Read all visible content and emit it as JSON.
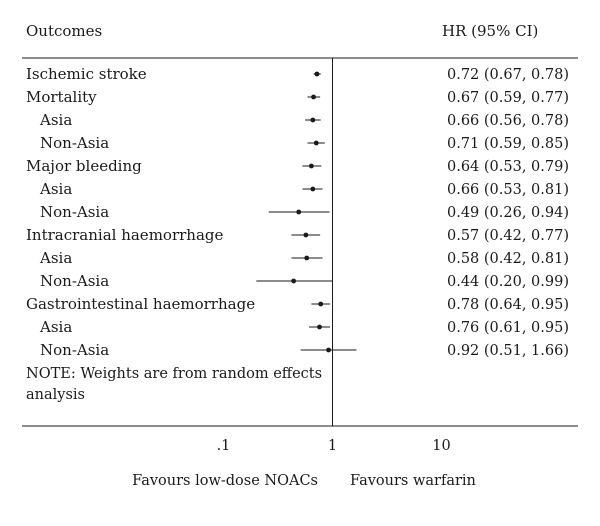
{
  "chart_data": {
    "type": "forest",
    "scale": "log",
    "x_reference": 1,
    "xlim": [
      0.05,
      50
    ],
    "header": {
      "label_column": "Outcomes",
      "value_column": "HR (95% CI)"
    },
    "rows": [
      {
        "label": "Ischemic stroke",
        "indent": false,
        "hr": 0.72,
        "lo": 0.67,
        "hi": 0.78,
        "text": "0.72 (0.67, 0.78)"
      },
      {
        "label": "Mortality",
        "indent": false,
        "hr": 0.67,
        "lo": 0.59,
        "hi": 0.77,
        "text": "0.67 (0.59, 0.77)"
      },
      {
        "label": "Asia",
        "indent": true,
        "hr": 0.66,
        "lo": 0.56,
        "hi": 0.78,
        "text": "0.66 (0.56, 0.78)"
      },
      {
        "label": "Non-Asia",
        "indent": true,
        "hr": 0.71,
        "lo": 0.59,
        "hi": 0.85,
        "text": "0.71 (0.59, 0.85)"
      },
      {
        "label": "Major bleeding",
        "indent": false,
        "hr": 0.64,
        "lo": 0.53,
        "hi": 0.79,
        "text": "0.64 (0.53, 0.79)"
      },
      {
        "label": "Asia",
        "indent": true,
        "hr": 0.66,
        "lo": 0.53,
        "hi": 0.81,
        "text": "0.66 (0.53, 0.81)"
      },
      {
        "label": "Non-Asia",
        "indent": true,
        "hr": 0.49,
        "lo": 0.26,
        "hi": 0.94,
        "text": "0.49 (0.26, 0.94)"
      },
      {
        "label": "Intracranial haemorrhage",
        "indent": false,
        "hr": 0.57,
        "lo": 0.42,
        "hi": 0.77,
        "text": "0.57 (0.42, 0.77)"
      },
      {
        "label": "Asia",
        "indent": true,
        "hr": 0.58,
        "lo": 0.42,
        "hi": 0.81,
        "text": "0.58 (0.42, 0.81)"
      },
      {
        "label": "Non-Asia",
        "indent": true,
        "hr": 0.44,
        "lo": 0.2,
        "hi": 0.99,
        "text": "0.44 (0.20, 0.99)"
      },
      {
        "label": "Gastrointestinal haemorrhage",
        "indent": false,
        "hr": 0.78,
        "lo": 0.64,
        "hi": 0.95,
        "text": "0.78 (0.64, 0.95)"
      },
      {
        "label": "Asia",
        "indent": true,
        "hr": 0.76,
        "lo": 0.61,
        "hi": 0.95,
        "text": "0.76 (0.61, 0.95)"
      },
      {
        "label": "Non-Asia",
        "indent": true,
        "hr": 0.92,
        "lo": 0.51,
        "hi": 1.66,
        "text": "0.92 (0.51, 1.66)"
      }
    ],
    "note": [
      "NOTE: Weights are from random effects",
      "analysis"
    ],
    "x_ticks": [
      {
        "value": 0.1,
        "label": ".1"
      },
      {
        "value": 1,
        "label": "1"
      },
      {
        "value": 10,
        "label": "10"
      }
    ],
    "favours_left": "Favours low-dose NOACs",
    "favours_right": "Favours warfarin",
    "colors": {
      "ink": "#1a1a1a"
    }
  }
}
